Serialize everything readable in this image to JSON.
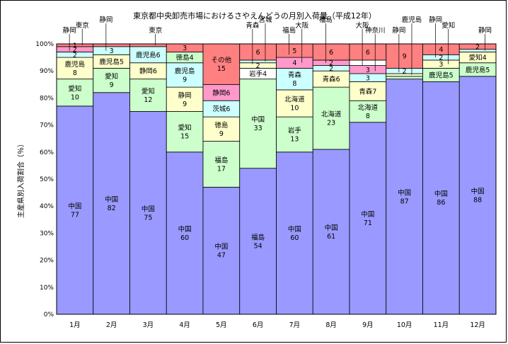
{
  "chart_data": {
    "type": "bar",
    "stacked": true,
    "title": "東京都中央卸売市場におけるさやえんどうの月別入荷量（平成12年）",
    "ylabel": "主産県別入荷割合（％）",
    "xlabel": "",
    "ylim": [
      0,
      100
    ],
    "yticks": [
      "0%",
      "10%",
      "20%",
      "30%",
      "40%",
      "50%",
      "60%",
      "70%",
      "80%",
      "90%",
      "100%"
    ],
    "grid": true,
    "categories": [
      "1月",
      "2月",
      "3月",
      "4月",
      "5月",
      "6月",
      "7月",
      "8月",
      "9月",
      "10月",
      "11月",
      "12月"
    ],
    "colors": {
      "china": "#9999ff",
      "green": "#ccffcc",
      "yellow": "#ffffcc",
      "cyan": "#ccffff",
      "pink": "#ff99cc",
      "red": "#ff8080",
      "white": "#ffffff"
    },
    "bars": [
      {
        "segments": [
          {
            "name": "中国",
            "value": 77,
            "color": "china",
            "label": "中国\n77"
          },
          {
            "name": "愛知",
            "value": 10,
            "color": "green",
            "label": "愛知\n10"
          },
          {
            "name": "鹿児島",
            "value": 8,
            "color": "yellow",
            "label": "鹿児島\n8"
          },
          {
            "name": "",
            "value": 2,
            "color": "cyan",
            "label": "2"
          },
          {
            "name": "",
            "value": 2,
            "color": "pink",
            "label": "2"
          },
          {
            "name": "",
            "value": 1,
            "color": "red",
            "label": "1"
          }
        ]
      },
      {
        "segments": [
          {
            "name": "中国",
            "value": 82,
            "color": "china",
            "label": "中国\n82"
          },
          {
            "name": "愛知",
            "value": 9,
            "color": "green",
            "label": "愛知\n9"
          },
          {
            "name": "鹿児島",
            "value": 5,
            "color": "yellow",
            "label": "鹿児島5"
          },
          {
            "name": "",
            "value": 3,
            "color": "cyan",
            "label": "3"
          },
          {
            "name": "",
            "value": 1,
            "color": "red",
            "label": ""
          }
        ]
      },
      {
        "segments": [
          {
            "name": "中国",
            "value": 75,
            "color": "china",
            "label": "中国\n75"
          },
          {
            "name": "愛知",
            "value": 12,
            "color": "green",
            "label": "愛知\n12"
          },
          {
            "name": "静岡",
            "value": 6,
            "color": "yellow",
            "label": "静岡6"
          },
          {
            "name": "鹿児島",
            "value": 6,
            "color": "cyan",
            "label": "鹿児島6"
          },
          {
            "name": "",
            "value": 1,
            "color": "red",
            "label": ""
          }
        ]
      },
      {
        "segments": [
          {
            "name": "中国",
            "value": 60,
            "color": "china",
            "label": "中国\n60"
          },
          {
            "name": "愛知",
            "value": 15,
            "color": "green",
            "label": "愛知\n15"
          },
          {
            "name": "静岡",
            "value": 9,
            "color": "yellow",
            "label": "静岡\n9"
          },
          {
            "name": "鹿児島",
            "value": 9,
            "color": "cyan",
            "label": "鹿児島\n9"
          },
          {
            "name": "徳島",
            "value": 4,
            "color": "green",
            "label": "徳島4"
          },
          {
            "name": "",
            "value": 3,
            "color": "red",
            "label": "3"
          }
        ]
      },
      {
        "segments": [
          {
            "name": "中国",
            "value": 47,
            "color": "china",
            "label": "中国\n47"
          },
          {
            "name": "福島",
            "value": 17,
            "color": "green",
            "label": "福島\n17"
          },
          {
            "name": "徳島",
            "value": 9,
            "color": "yellow",
            "label": "徳島\n9"
          },
          {
            "name": "茨城",
            "value": 6,
            "color": "cyan",
            "label": "茨城6"
          },
          {
            "name": "静岡",
            "value": 6,
            "color": "pink",
            "label": "静岡6"
          },
          {
            "name": "その他",
            "value": 15,
            "color": "red",
            "label": "その他\n15"
          }
        ]
      },
      {
        "segments": [
          {
            "name": "福島",
            "value": 54,
            "color": "china",
            "label": "福島\n54"
          },
          {
            "name": "中国",
            "value": 33,
            "color": "green",
            "label": "中国\n33"
          },
          {
            "name": "岩手",
            "value": 4,
            "color": "white",
            "label": "岩手4"
          },
          {
            "name": "",
            "value": 2,
            "color": "yellow",
            "label": "2"
          },
          {
            "name": "",
            "value": 1,
            "color": "cyan",
            "label": ""
          },
          {
            "name": "",
            "value": 6,
            "color": "red",
            "label": "6"
          }
        ]
      },
      {
        "segments": [
          {
            "name": "中国",
            "value": 60,
            "color": "china",
            "label": "中国\n60"
          },
          {
            "name": "岩手",
            "value": 13,
            "color": "green",
            "label": "岩手\n13"
          },
          {
            "name": "北海道",
            "value": 10,
            "color": "yellow",
            "label": "北海道\n10"
          },
          {
            "name": "青森",
            "value": 8,
            "color": "cyan",
            "label": "青森\n8"
          },
          {
            "name": "",
            "value": 4,
            "color": "pink",
            "label": "4"
          },
          {
            "name": "",
            "value": 5,
            "color": "red",
            "label": "5"
          }
        ]
      },
      {
        "segments": [
          {
            "name": "中国",
            "value": 61,
            "color": "china",
            "label": "中国\n61"
          },
          {
            "name": "北海道",
            "value": 23,
            "color": "green",
            "label": "北海道\n23"
          },
          {
            "name": "青森",
            "value": 6,
            "color": "yellow",
            "label": "青森6"
          },
          {
            "name": "",
            "value": 2,
            "color": "cyan",
            "label": "2"
          },
          {
            "name": "",
            "value": 2,
            "color": "pink",
            "label": "2"
          },
          {
            "name": "",
            "value": 6,
            "color": "red",
            "label": "6"
          }
        ]
      },
      {
        "segments": [
          {
            "name": "中国",
            "value": 71,
            "color": "china",
            "label": "中国\n71"
          },
          {
            "name": "北海道",
            "value": 8,
            "color": "green",
            "label": "北海道\n8"
          },
          {
            "name": "青森",
            "value": 7,
            "color": "yellow",
            "label": "青森7"
          },
          {
            "name": "",
            "value": 3,
            "color": "cyan",
            "label": "3"
          },
          {
            "name": "",
            "value": 3,
            "color": "pink",
            "label": "3"
          },
          {
            "name": "",
            "value": 2,
            "color": "white",
            "label": ""
          },
          {
            "name": "",
            "value": 6,
            "color": "red",
            "label": "6"
          }
        ]
      },
      {
        "segments": [
          {
            "name": "中国",
            "value": 87,
            "color": "china",
            "label": "中国\n87"
          },
          {
            "name": "",
            "value": 1,
            "color": "green",
            "label": ""
          },
          {
            "name": "",
            "value": 1,
            "color": "yellow",
            "label": ""
          },
          {
            "name": "",
            "value": 2,
            "color": "cyan",
            "label": "2"
          },
          {
            "name": "",
            "value": 9,
            "color": "red",
            "label": "9"
          }
        ]
      },
      {
        "segments": [
          {
            "name": "中国",
            "value": 86,
            "color": "china",
            "label": "中国\n86"
          },
          {
            "name": "鹿児島",
            "value": 5,
            "color": "green",
            "label": "鹿児島5"
          },
          {
            "name": "",
            "value": 3,
            "color": "yellow",
            "label": "3"
          },
          {
            "name": "",
            "value": 2,
            "color": "cyan",
            "label": "2"
          },
          {
            "name": "",
            "value": 4,
            "color": "red",
            "label": "4"
          }
        ]
      },
      {
        "segments": [
          {
            "name": "中国",
            "value": 88,
            "color": "china",
            "label": "中国\n88"
          },
          {
            "name": "鹿児島",
            "value": 5,
            "color": "green",
            "label": "鹿児島5"
          },
          {
            "name": "愛知",
            "value": 4,
            "color": "yellow",
            "label": "愛知4"
          },
          {
            "name": "",
            "value": 1,
            "color": "cyan",
            "label": ""
          },
          {
            "name": "",
            "value": 2,
            "color": "red",
            "label": "2"
          }
        ]
      }
    ],
    "callouts": [
      {
        "text": "静岡",
        "bar": 0,
        "at": 97.5
      },
      {
        "text": "東京",
        "bar": 0,
        "at": 99.5
      },
      {
        "text": "静岡",
        "bar": 1,
        "at": 97.5
      },
      {
        "text": "東京",
        "bar": 2,
        "at": 99.5
      },
      {
        "text": "青森",
        "bar": 5,
        "at": 92.5
      },
      {
        "text": "宮城",
        "bar": 5,
        "at": 93.5
      },
      {
        "text": "福島",
        "bar": 6,
        "at": 96
      },
      {
        "text": "大阪",
        "bar": 6,
        "at": 93
      },
      {
        "text": "福島",
        "bar": 7,
        "at": 93
      },
      {
        "text": "神奈川",
        "bar": 8,
        "at": 90
      },
      {
        "text": "大阪",
        "bar": 8,
        "at": 92
      },
      {
        "text": "鹿児島",
        "bar": 9,
        "at": 88.5
      },
      {
        "text": "静岡",
        "bar": 9,
        "at": 89.5
      },
      {
        "text": "愛知",
        "bar": 10,
        "at": 92.5
      },
      {
        "text": "静岡",
        "bar": 10,
        "at": 95
      },
      {
        "text": "静岡",
        "bar": 11,
        "at": 97.5
      }
    ]
  }
}
